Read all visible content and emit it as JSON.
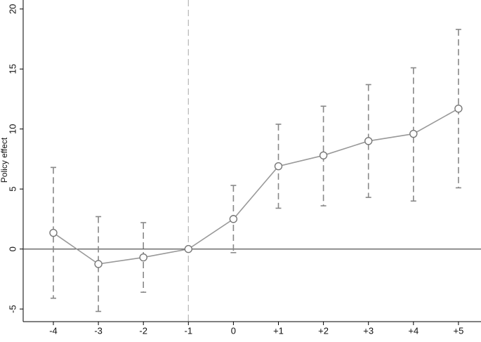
{
  "chart_data": {
    "type": "errorline",
    "y_label": "Policy effect",
    "categories": [
      "-4",
      "-3",
      "-2",
      "-1",
      "0",
      "+1",
      "+2",
      "+3",
      "+4",
      "+5"
    ],
    "series": [
      {
        "color": "#999999",
        "values": [
          1.35,
          -1.25,
          -0.7,
          0,
          2.5,
          6.9,
          7.8,
          9.0,
          9.6,
          11.7
        ],
        "upper": [
          6.8,
          2.7,
          2.2,
          null,
          5.3,
          10.4,
          11.9,
          13.7,
          15.1,
          18.3
        ],
        "lower": [
          -4.1,
          -5.2,
          -3.6,
          null,
          -0.3,
          3.4,
          3.6,
          4.3,
          4.0,
          5.1
        ]
      }
    ],
    "ylim": [
      -6.05,
      20.75
    ],
    "yticks": [
      -5,
      0,
      5,
      10,
      15,
      20
    ],
    "hline": 0,
    "vline": "-1",
    "grid": false
  }
}
